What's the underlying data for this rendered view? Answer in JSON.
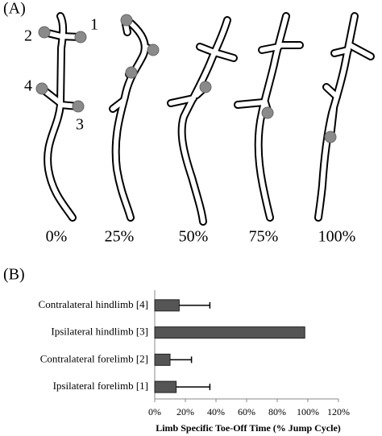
{
  "panel_a": {
    "label": "(A)",
    "limb_labels": [
      "1",
      "2",
      "3",
      "4"
    ],
    "stages": [
      "0%",
      "25%",
      "50%",
      "75%",
      "100%"
    ]
  },
  "chart_data": {
    "type": "hbar",
    "panel_label": "(B)",
    "xlabel": "Limb Specific Toe-Off Time (% Jump Cycle)",
    "categories": [
      "Contralateral hindlimb [4]",
      "Ipsilateral hindlimb [3]",
      "Contralateral forelimb [2]",
      "Ipsilateral forelimb [1]"
    ],
    "values": [
      16,
      98,
      10,
      14
    ],
    "errors": [
      20,
      null,
      14,
      22
    ],
    "color": "#555555",
    "xlim": [
      0,
      120
    ],
    "xticks": [
      {
        "value": 0,
        "label": "0%"
      },
      {
        "value": 20,
        "label": "20%"
      },
      {
        "value": 40,
        "label": "40%"
      },
      {
        "value": 60,
        "label": "60%"
      },
      {
        "value": 80,
        "label": "80%"
      },
      {
        "value": 100,
        "label": "100%"
      },
      {
        "value": 120,
        "label": "120%"
      }
    ],
    "grid": false
  }
}
